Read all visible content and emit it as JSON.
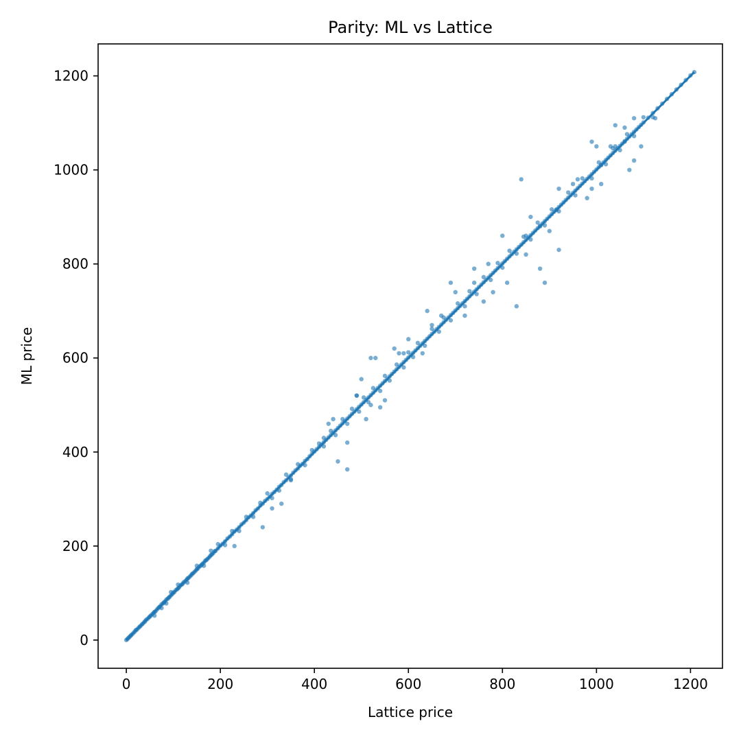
{
  "chart_data": {
    "type": "scatter",
    "title": "Parity: ML vs Lattice",
    "xlabel": "Lattice price",
    "ylabel": "ML price",
    "xlim": [
      -60,
      1268
    ],
    "ylim": [
      -60,
      1268
    ],
    "xticks": [
      0,
      200,
      400,
      600,
      800,
      1000,
      1200
    ],
    "yticks": [
      0,
      200,
      400,
      600,
      800,
      1000,
      1200
    ],
    "grid": false,
    "colors": {
      "points": "#1f77b4",
      "line": "#1f77b4",
      "axes": "#000000"
    },
    "series": [
      {
        "kind": "reference-line",
        "x": [
          0,
          1208
        ],
        "y": [
          0,
          1208
        ]
      },
      {
        "kind": "points",
        "x": [
          0,
          2,
          4,
          6,
          8,
          10,
          12,
          15,
          18,
          20,
          22,
          25,
          28,
          30,
          33,
          35,
          38,
          40,
          42,
          45,
          48,
          50,
          52,
          55,
          58,
          60,
          62,
          65,
          68,
          70,
          72,
          75,
          78,
          80,
          82,
          85,
          88,
          90,
          92,
          95,
          98,
          100,
          102,
          105,
          108,
          110,
          112,
          115,
          118,
          120,
          122,
          125,
          128,
          130,
          132,
          135,
          138,
          140,
          142,
          145,
          148,
          150,
          152,
          155,
          158,
          160,
          162,
          165,
          168,
          170,
          172,
          175,
          178,
          180,
          182,
          185,
          188,
          190,
          195,
          200,
          205,
          210,
          215,
          220,
          225,
          230,
          235,
          240,
          245,
          250,
          255,
          260,
          265,
          270,
          275,
          280,
          285,
          290,
          295,
          300,
          305,
          310,
          315,
          320,
          325,
          330,
          335,
          340,
          345,
          350,
          355,
          360,
          365,
          370,
          375,
          380,
          385,
          390,
          395,
          400,
          405,
          410,
          415,
          420,
          425,
          430,
          435,
          440,
          445,
          450,
          455,
          460,
          465,
          470,
          475,
          480,
          485,
          490,
          495,
          500,
          505,
          510,
          515,
          520,
          525,
          530,
          535,
          540,
          545,
          550,
          555,
          560,
          565,
          570,
          575,
          580,
          585,
          590,
          595,
          600,
          605,
          610,
          615,
          620,
          625,
          630,
          635,
          640,
          645,
          650,
          655,
          660,
          665,
          670,
          675,
          680,
          685,
          690,
          695,
          700,
          705,
          710,
          715,
          720,
          725,
          730,
          735,
          740,
          745,
          750,
          755,
          760,
          765,
          770,
          775,
          780,
          785,
          790,
          795,
          800,
          805,
          810,
          815,
          820,
          825,
          830,
          835,
          840,
          845,
          850,
          855,
          860,
          865,
          870,
          875,
          880,
          885,
          890,
          895,
          900,
          905,
          910,
          915,
          920,
          925,
          930,
          935,
          940,
          945,
          950,
          955,
          960,
          965,
          970,
          975,
          980,
          985,
          990,
          995,
          1000,
          1005,
          1010,
          1015,
          1020,
          1025,
          1030,
          1035,
          1040,
          1045,
          1050,
          1055,
          1060,
          1065,
          1070,
          1075,
          1080,
          1085,
          1090,
          1095,
          1100,
          1110,
          1120,
          1130,
          1140,
          1150,
          1160,
          1170,
          1180,
          1190,
          1200,
          1208,
          60,
          75,
          85,
          95,
          110,
          130,
          150,
          165,
          180,
          195,
          210,
          225,
          240,
          255,
          270,
          285,
          300,
          310,
          325,
          340,
          350,
          365,
          380,
          395,
          410,
          420,
          435,
          445,
          460,
          470,
          480,
          495,
          505,
          515,
          525,
          540,
          550,
          560,
          575,
          590,
          600,
          610,
          620,
          635,
          650,
          665,
          675,
          690,
          705,
          720,
          730,
          745,
          760,
          775,
          790,
          800,
          815,
          830,
          845,
          860,
          875,
          890,
          905,
          920,
          940,
          955,
          970,
          990,
          1005,
          1020,
          1035,
          1050,
          1065,
          1080,
          1100,
          1120,
          230,
          290,
          310,
          330,
          350,
          450,
          470,
          490,
          500,
          520,
          540,
          580,
          600,
          630,
          650,
          690,
          720,
          740,
          760,
          780,
          810,
          830,
          850,
          880,
          890,
          900,
          920,
          950,
          980,
          1010,
          1040,
          1060,
          1080,
          1095,
          1125,
          420,
          430,
          440,
          470,
          490,
          510,
          530,
          550,
          520,
          570,
          590,
          640,
          670,
          700,
          740,
          770,
          800,
          850,
          880,
          920,
          960,
          990,
          1030,
          1070,
          840,
          860,
          915,
          990,
          1010,
          1060,
          1080,
          1000,
          1040
        ],
        "y": [
          0,
          2,
          4,
          6,
          8,
          10,
          12,
          15,
          18,
          21,
          22,
          25,
          28,
          30,
          33,
          35,
          38,
          40,
          43,
          45,
          48,
          50,
          52,
          55,
          58,
          60,
          61,
          65,
          68,
          70,
          72,
          76,
          78,
          80,
          82,
          86,
          88,
          90,
          92,
          95,
          98,
          101,
          102,
          106,
          108,
          110,
          112,
          116,
          118,
          120,
          123,
          125,
          128,
          131,
          132,
          135,
          138,
          141,
          142,
          145,
          148,
          151,
          152,
          156,
          158,
          160,
          162,
          165,
          169,
          170,
          172,
          175,
          178,
          181,
          182,
          185,
          189,
          190,
          195,
          201,
          205,
          210,
          216,
          220,
          225,
          231,
          235,
          240,
          246,
          250,
          255,
          261,
          265,
          270,
          276,
          280,
          286,
          290,
          296,
          300,
          305,
          311,
          315,
          320,
          326,
          330,
          336,
          340,
          346,
          350,
          356,
          361,
          365,
          371,
          375,
          381,
          385,
          391,
          396,
          401,
          406,
          411,
          416,
          421,
          426,
          431,
          436,
          441,
          446,
          451,
          456,
          461,
          466,
          471,
          476,
          481,
          486,
          491,
          496,
          501,
          506,
          511,
          516,
          521,
          526,
          531,
          536,
          541,
          546,
          551,
          556,
          561,
          566,
          571,
          576,
          581,
          586,
          591,
          596,
          601,
          606,
          611,
          616,
          621,
          626,
          631,
          636,
          641,
          646,
          651,
          656,
          661,
          666,
          671,
          676,
          681,
          686,
          691,
          696,
          701,
          706,
          711,
          716,
          721,
          726,
          731,
          736,
          741,
          746,
          751,
          756,
          761,
          766,
          771,
          776,
          781,
          786,
          791,
          796,
          801,
          806,
          811,
          816,
          821,
          826,
          831,
          836,
          841,
          846,
          851,
          856,
          861,
          866,
          871,
          876,
          881,
          886,
          891,
          896,
          901,
          906,
          911,
          916,
          921,
          926,
          931,
          936,
          941,
          946,
          951,
          956,
          961,
          966,
          971,
          976,
          981,
          986,
          991,
          996,
          1001,
          1006,
          1011,
          1016,
          1021,
          1026,
          1031,
          1036,
          1041,
          1046,
          1051,
          1056,
          1061,
          1066,
          1071,
          1076,
          1081,
          1086,
          1091,
          1096,
          1101,
          1111,
          1121,
          1131,
          1141,
          1151,
          1161,
          1171,
          1181,
          1191,
          1201,
          1208,
          52,
          68,
          78,
          102,
          118,
          122,
          158,
          158,
          190,
          204,
          202,
          232,
          232,
          262,
          262,
          292,
          312,
          302,
          318,
          352,
          342,
          374,
          372,
          404,
          418,
          412,
          445,
          436,
          470,
          460,
          492,
          486,
          516,
          506,
          536,
          530,
          562,
          552,
          586,
          580,
          612,
          602,
          632,
          626,
          662,
          656,
          686,
          680,
          716,
          710,
          742,
          736,
          772,
          766,
          802,
          792,
          828,
          822,
          858,
          852,
          888,
          882,
          916,
          912,
          952,
          946,
          982,
          982,
          1016,
          1012,
          1046,
          1042,
          1076,
          1072,
          1112,
          1112,
          200,
          240,
          280,
          290,
          340,
          380,
          363,
          520,
          555,
          500,
          495,
          610,
          640,
          610,
          670,
          760,
          690,
          760,
          720,
          740,
          760,
          710,
          860,
          790,
          760,
          870,
          830,
          970,
          940,
          1010,
          1050,
          1060,
          1020,
          1050,
          1110,
          430,
          460,
          470,
          420,
          520,
          470,
          600,
          510,
          600,
          620,
          610,
          700,
          690,
          740,
          790,
          800,
          860,
          820,
          880,
          960,
          980,
          1060,
          1050,
          1000,
          980,
          900,
          915,
          960,
          970,
          1090,
          1110,
          1050,
          1095
        ]
      }
    ]
  }
}
